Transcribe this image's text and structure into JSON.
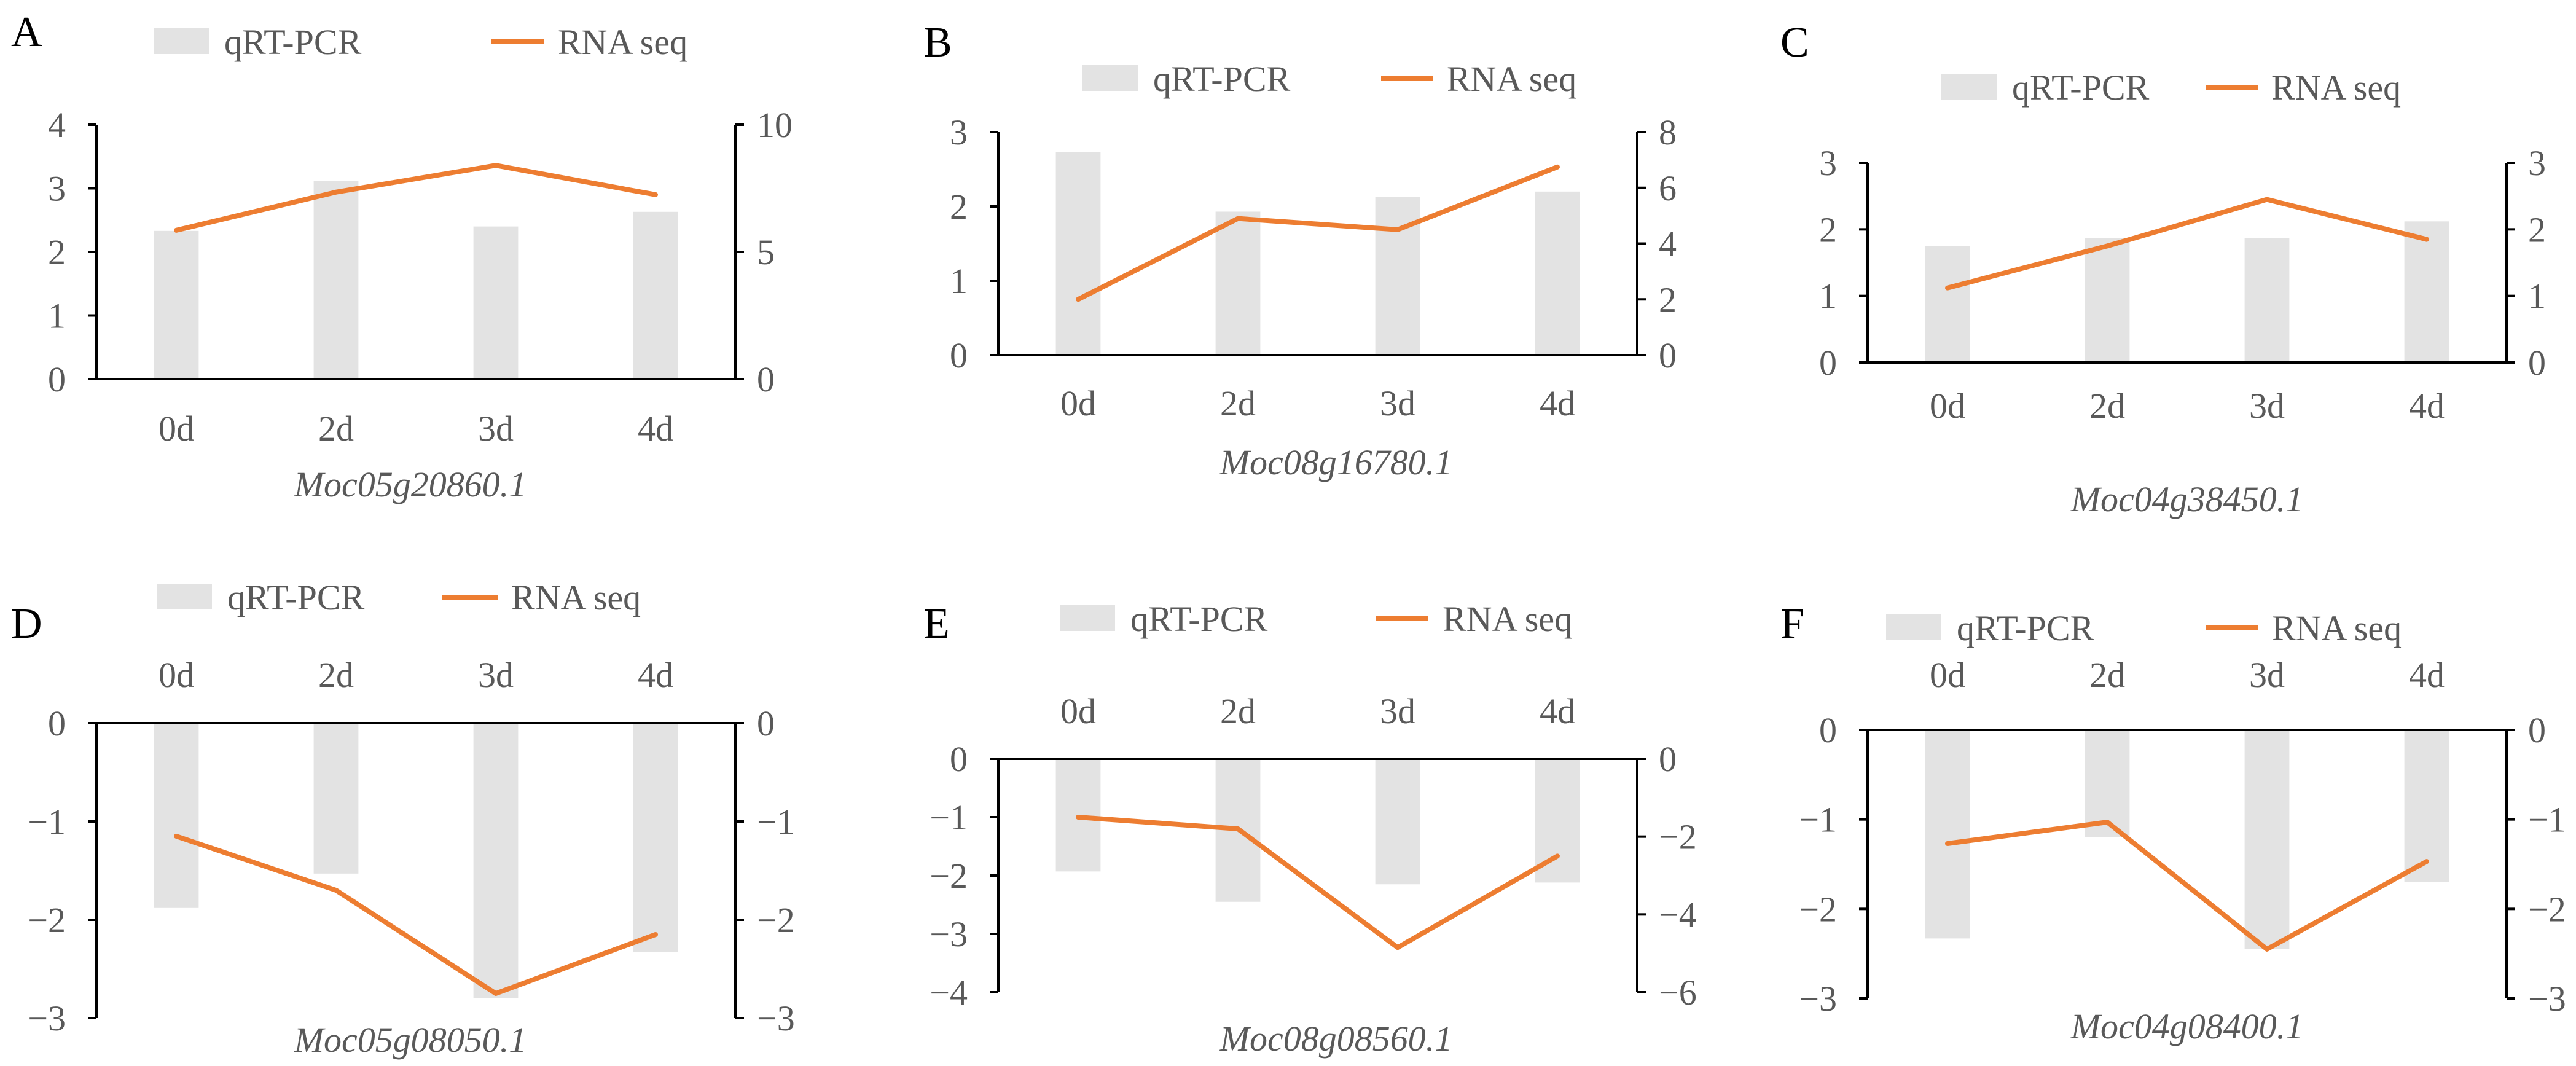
{
  "legend": {
    "bar_label": "qRT-PCR",
    "line_label": "RNA seq"
  },
  "colors": {
    "bar": "#e3e3e3",
    "line": "#ed7d31",
    "axis": "#000000",
    "text": "#595959"
  },
  "chart_data": [
    {
      "type": "bar+line",
      "panel": "A",
      "gene": "Moc05g20860.1",
      "categories": [
        "0d",
        "2d",
        "3d",
        "4d"
      ],
      "series": [
        {
          "name": "qRT-PCR",
          "axis": "left",
          "values": [
            2.33,
            3.12,
            2.4,
            2.63
          ]
        },
        {
          "name": "RNA seq",
          "axis": "right",
          "values": [
            5.85,
            7.35,
            8.4,
            7.25
          ]
        }
      ],
      "y_left": {
        "range": [
          0,
          4
        ],
        "ticks": [
          "0",
          "1",
          "2",
          "3",
          "4"
        ]
      },
      "y_right": {
        "range": [
          0,
          10
        ],
        "ticks": [
          "0",
          "5",
          "10"
        ]
      }
    },
    {
      "type": "bar+line",
      "panel": "B",
      "gene": "Moc08g16780.1",
      "categories": [
        "0d",
        "2d",
        "3d",
        "4d"
      ],
      "series": [
        {
          "name": "qRT-PCR",
          "axis": "left",
          "values": [
            2.73,
            1.93,
            2.13,
            2.2
          ]
        },
        {
          "name": "RNA seq",
          "axis": "right",
          "values": [
            2.0,
            4.9,
            4.5,
            6.75
          ]
        }
      ],
      "y_left": {
        "range": [
          0,
          3
        ],
        "ticks": [
          "0",
          "1",
          "2",
          "3"
        ]
      },
      "y_right": {
        "range": [
          0,
          8
        ],
        "ticks": [
          "0",
          "2",
          "4",
          "6",
          "8"
        ]
      }
    },
    {
      "type": "bar+line",
      "panel": "C",
      "gene": "Moc04g38450.1",
      "categories": [
        "0d",
        "2d",
        "3d",
        "4d"
      ],
      "series": [
        {
          "name": "qRT-PCR",
          "axis": "left",
          "values": [
            1.75,
            1.87,
            1.87,
            2.12
          ]
        },
        {
          "name": "RNA seq",
          "axis": "right",
          "values": [
            1.12,
            1.75,
            2.45,
            1.85
          ]
        }
      ],
      "y_left": {
        "range": [
          0,
          3
        ],
        "ticks": [
          "0",
          "1",
          "2",
          "3"
        ]
      },
      "y_right": {
        "range": [
          0,
          3
        ],
        "ticks": [
          "0",
          "1",
          "2",
          "3"
        ]
      }
    },
    {
      "type": "bar+line",
      "panel": "D",
      "gene": "Moc05g08050.1",
      "categories": [
        "0d",
        "2d",
        "3d",
        "4d"
      ],
      "series": [
        {
          "name": "qRT-PCR",
          "axis": "left",
          "values": [
            -1.88,
            -1.53,
            -2.8,
            -2.33
          ]
        },
        {
          "name": "RNA seq",
          "axis": "right",
          "values": [
            -1.15,
            -1.7,
            -2.75,
            -2.15
          ]
        }
      ],
      "y_left": {
        "range": [
          -3,
          0
        ],
        "ticks": [
          "0",
          "−1",
          "−2",
          "−3"
        ]
      },
      "y_right": {
        "range": [
          -3,
          0
        ],
        "ticks": [
          "0",
          "−1",
          "−2",
          "−3"
        ]
      }
    },
    {
      "type": "bar+line",
      "panel": "E",
      "gene": "Moc08g08560.1",
      "categories": [
        "0d",
        "2d",
        "3d",
        "4d"
      ],
      "series": [
        {
          "name": "qRT-PCR",
          "axis": "left",
          "values": [
            -1.93,
            -2.45,
            -2.15,
            -2.12
          ]
        },
        {
          "name": "RNA seq",
          "axis": "right",
          "values": [
            -1.5,
            -1.8,
            -4.85,
            -2.5
          ]
        }
      ],
      "y_left": {
        "range": [
          -4,
          0
        ],
        "ticks": [
          "0",
          "−1",
          "−2",
          "−3",
          "−4"
        ]
      },
      "y_right": {
        "range": [
          -6,
          0
        ],
        "ticks": [
          "0",
          "−2",
          "−4",
          "−6"
        ]
      }
    },
    {
      "type": "bar+line",
      "panel": "F",
      "gene": "Moc04g08400.1",
      "categories": [
        "0d",
        "2d",
        "3d",
        "4d"
      ],
      "series": [
        {
          "name": "qRT-PCR",
          "axis": "left",
          "values": [
            -2.33,
            -1.2,
            -2.45,
            -1.7
          ]
        },
        {
          "name": "RNA seq",
          "axis": "right",
          "values": [
            -1.27,
            -1.03,
            -2.45,
            -1.47
          ]
        }
      ],
      "y_left": {
        "range": [
          -3,
          0
        ],
        "ticks": [
          "0",
          "−1",
          "−2",
          "−3"
        ]
      },
      "y_right": {
        "range": [
          -3,
          0
        ],
        "ticks": [
          "0",
          "−1",
          "−2",
          "−3"
        ]
      }
    }
  ]
}
